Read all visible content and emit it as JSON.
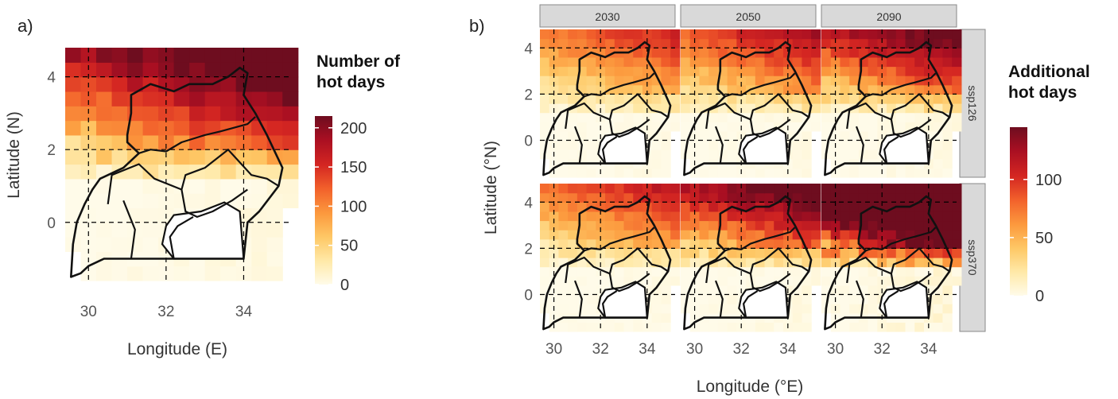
{
  "panel_a": {
    "letter": "a)",
    "xlabel": "Longitude (E)",
    "ylabel": "Latitude (N)",
    "x_ticks": [
      "30",
      "32",
      "34"
    ],
    "y_ticks": [
      "0",
      "2",
      "4"
    ],
    "legend": {
      "title_line1": "Number of",
      "title_line2": "hot days",
      "ticks": [
        "200",
        "150",
        "100",
        "50",
        "0"
      ]
    }
  },
  "panel_b": {
    "letter": "b)",
    "xlabel": "Longitude (°E)",
    "ylabel": "Latitude (°N)",
    "x_ticks": [
      "30",
      "32",
      "34"
    ],
    "y_ticks": [
      "0",
      "2",
      "4"
    ],
    "column_strips": [
      "2030",
      "2050",
      "2090"
    ],
    "row_strips": [
      "ssp126",
      "ssp370"
    ],
    "legend": {
      "title_line1": "Additional",
      "title_line2": "hot days",
      "ticks": [
        "100",
        "50",
        "0"
      ]
    }
  },
  "chart_data": [
    {
      "type": "heatmap",
      "panel": "a",
      "xlabel": "Longitude (E)",
      "ylabel": "Latitude (N)",
      "xlim": [
        29.2,
        35.2
      ],
      "ylim": [
        -1.6,
        4.8
      ],
      "grid": "dashed at 30, 32, 34 E and 0, 2, 4 N",
      "colorbar": {
        "title": "Number of hot days",
        "range": [
          0,
          215
        ],
        "ticks": [
          0,
          50,
          100,
          150,
          200
        ]
      },
      "pattern": "high in the north (100-200 days), decreasing southward to near 0 south of 2N"
    },
    {
      "type": "heatmap",
      "panel": "b",
      "facets": {
        "columns": [
          "2030",
          "2050",
          "2090"
        ],
        "rows": [
          "ssp126",
          "ssp370"
        ]
      },
      "xlabel": "Longitude (°E)",
      "ylabel": "Latitude (°N)",
      "xlim": [
        29.2,
        35.2
      ],
      "ylim": [
        -1.6,
        4.8
      ],
      "colorbar": {
        "title": "Additional hot days",
        "range": [
          0,
          145
        ],
        "ticks": [
          0,
          50,
          100
        ]
      },
      "relative_intensity": {
        "ssp126": [
          0.28,
          0.33,
          0.42
        ],
        "ssp370": [
          0.3,
          0.45,
          0.85
        ]
      }
    }
  ],
  "colors": {
    "scale": [
      "#fffbe9",
      "#ffe9a8",
      "#fec866",
      "#fc9a3e",
      "#f2602b",
      "#d42622",
      "#a90f22",
      "#6e0d1f"
    ],
    "strip_fill": "#d9d9d9",
    "outline": "#111111"
  }
}
